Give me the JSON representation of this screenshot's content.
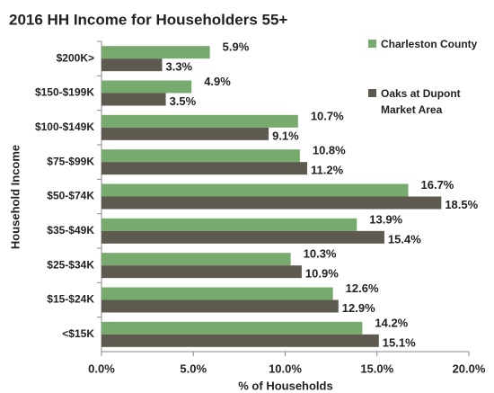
{
  "chart_data": {
    "type": "hbar",
    "title": "2016 HH Income for Householders 55+",
    "y_label": "Household Income",
    "x_label": "% of Households",
    "categories": [
      "$200K>",
      "$150-$199K",
      "$100-$149K",
      "$75-$99K",
      "$50-$74K",
      "$35-$49K",
      "$25-$34K",
      "$15-$24K",
      "<$15K"
    ],
    "series": [
      {
        "name": "Charleston County",
        "color": "#77ab6e",
        "values": [
          5.9,
          4.9,
          10.7,
          10.8,
          16.7,
          13.9,
          10.3,
          12.6,
          14.2
        ],
        "value_labels": [
          "5.9%",
          "4.9%",
          "10.7%",
          "10.8%",
          "16.7%",
          "13.9%",
          "10.3%",
          "12.6%",
          "14.2%"
        ]
      },
      {
        "name": "Oaks at Dupont Market Area",
        "color": "#5f5a4f",
        "values": [
          3.3,
          3.5,
          9.1,
          11.2,
          18.5,
          15.4,
          10.9,
          12.9,
          15.1
        ],
        "value_labels": [
          "3.3%",
          "3.5%",
          "9.1%",
          "11.2%",
          "18.5%",
          "15.4%",
          "10.9%",
          "12.9%",
          "15.1%"
        ]
      }
    ],
    "xlim": [
      0,
      20
    ],
    "xticks": [
      {
        "value": 0,
        "label": "0.0%"
      },
      {
        "value": 5,
        "label": "5.0%"
      },
      {
        "value": 10,
        "label": "10.0%"
      },
      {
        "value": 15,
        "label": "15.0%"
      },
      {
        "value": 20,
        "label": "20.0%"
      }
    ],
    "grid": false,
    "legend": "top-right"
  }
}
